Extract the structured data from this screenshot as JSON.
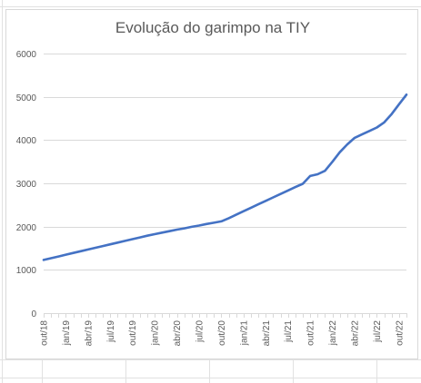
{
  "chart_data": {
    "type": "line",
    "title": "Evolução do garimpo na TIY",
    "xlabel": "",
    "ylabel": "",
    "ylim": [
      0,
      6000
    ],
    "yticks": [
      0,
      1000,
      2000,
      3000,
      4000,
      5000,
      6000
    ],
    "grid": true,
    "legend": "none",
    "line_color": "#4472c4",
    "categories": [
      "out/18",
      "jan/19",
      "abr/19",
      "jul/19",
      "out/19",
      "jan/20",
      "abr/20",
      "jul/20",
      "out/20",
      "jan/21",
      "abr/21",
      "jul/21",
      "out/21",
      "jan/22",
      "abr/22",
      "jul/22",
      "out/22"
    ],
    "x": [
      "out/18",
      "nov/18",
      "dez/18",
      "jan/19",
      "fev/19",
      "mar/19",
      "abr/19",
      "mai/19",
      "jun/19",
      "jul/19",
      "ago/19",
      "set/19",
      "out/19",
      "nov/19",
      "dez/19",
      "jan/20",
      "fev/20",
      "mar/20",
      "abr/20",
      "mai/20",
      "jun/20",
      "jul/20",
      "ago/20",
      "set/20",
      "out/20",
      "nov/20",
      "dez/20",
      "jan/21",
      "fev/21",
      "mar/21",
      "abr/21",
      "mai/21",
      "jun/21",
      "jul/21",
      "ago/21",
      "set/21",
      "out/21",
      "nov/21",
      "dez/21",
      "jan/22",
      "fev/22",
      "mar/22",
      "abr/22",
      "mai/22",
      "jun/22",
      "jul/22",
      "ago/22",
      "set/22",
      "out/22",
      "nov/22"
    ],
    "series": [
      {
        "values": [
          1230,
          1270,
          1310,
          1350,
          1390,
          1430,
          1470,
          1510,
          1550,
          1590,
          1630,
          1670,
          1710,
          1750,
          1790,
          1825,
          1860,
          1895,
          1930,
          1960,
          1995,
          2025,
          2060,
          2090,
          2120,
          2195,
          2275,
          2355,
          2435,
          2515,
          2595,
          2675,
          2755,
          2835,
          2915,
          2990,
          3170,
          3210,
          3290,
          3500,
          3720,
          3900,
          4050,
          4130,
          4210,
          4290,
          4410,
          4600,
          4830,
          5050
        ]
      }
    ]
  }
}
